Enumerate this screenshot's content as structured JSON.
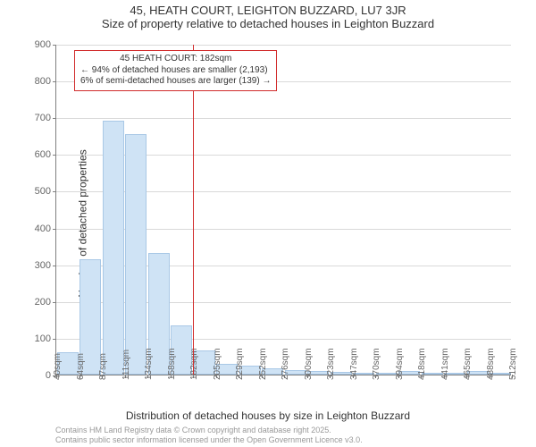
{
  "chart": {
    "type": "histogram",
    "title_line1": "45, HEATH COURT, LEIGHTON BUZZARD, LU7 3JR",
    "title_line2": "Size of property relative to detached houses in Leighton Buzzard",
    "title_fontsize": 13,
    "ylabel": "Number of detached properties",
    "xlabel": "Distribution of detached houses by size in Leighton Buzzard",
    "label_fontsize": 12,
    "tick_fontsize": 11,
    "ylim": [
      0,
      900
    ],
    "ytick_step": 100,
    "yticks": [
      0,
      100,
      200,
      300,
      400,
      500,
      600,
      700,
      800,
      900
    ],
    "xticks": [
      "40sqm",
      "64sqm",
      "87sqm",
      "111sqm",
      "134sqm",
      "158sqm",
      "182sqm",
      "205sqm",
      "229sqm",
      "252sqm",
      "276sqm",
      "300sqm",
      "323sqm",
      "347sqm",
      "370sqm",
      "394sqm",
      "418sqm",
      "441sqm",
      "465sqm",
      "488sqm",
      "512sqm"
    ],
    "bar_count": 20,
    "values": [
      60,
      315,
      690,
      655,
      330,
      135,
      65,
      30,
      25,
      18,
      12,
      10,
      8,
      5,
      3,
      10,
      3,
      2,
      10,
      2
    ],
    "bar_fill": "#cfe3f5",
    "bar_border": "#a9c8e6",
    "grid_color": "#d9d9d9",
    "axis_color": "#808080",
    "tick_color": "#666666",
    "background_color": "#ffffff",
    "reference_line": {
      "x_index": 6,
      "color": "#d12c2c",
      "width": 1.5
    },
    "info_box": {
      "lines": [
        "45 HEATH COURT: 182sqm",
        "← 94% of detached houses are smaller (2,193)",
        "6% of semi-detached houses are larger (139) →"
      ],
      "border_color": "#d12c2c",
      "fontsize": 10,
      "background": "#ffffff"
    },
    "credits": {
      "line1": "Contains HM Land Registry data © Crown copyright and database right 2025.",
      "line2": "Contains public sector information licensed under the Open Government Licence v3.0.",
      "fontsize": 9,
      "color": "#999999"
    }
  }
}
